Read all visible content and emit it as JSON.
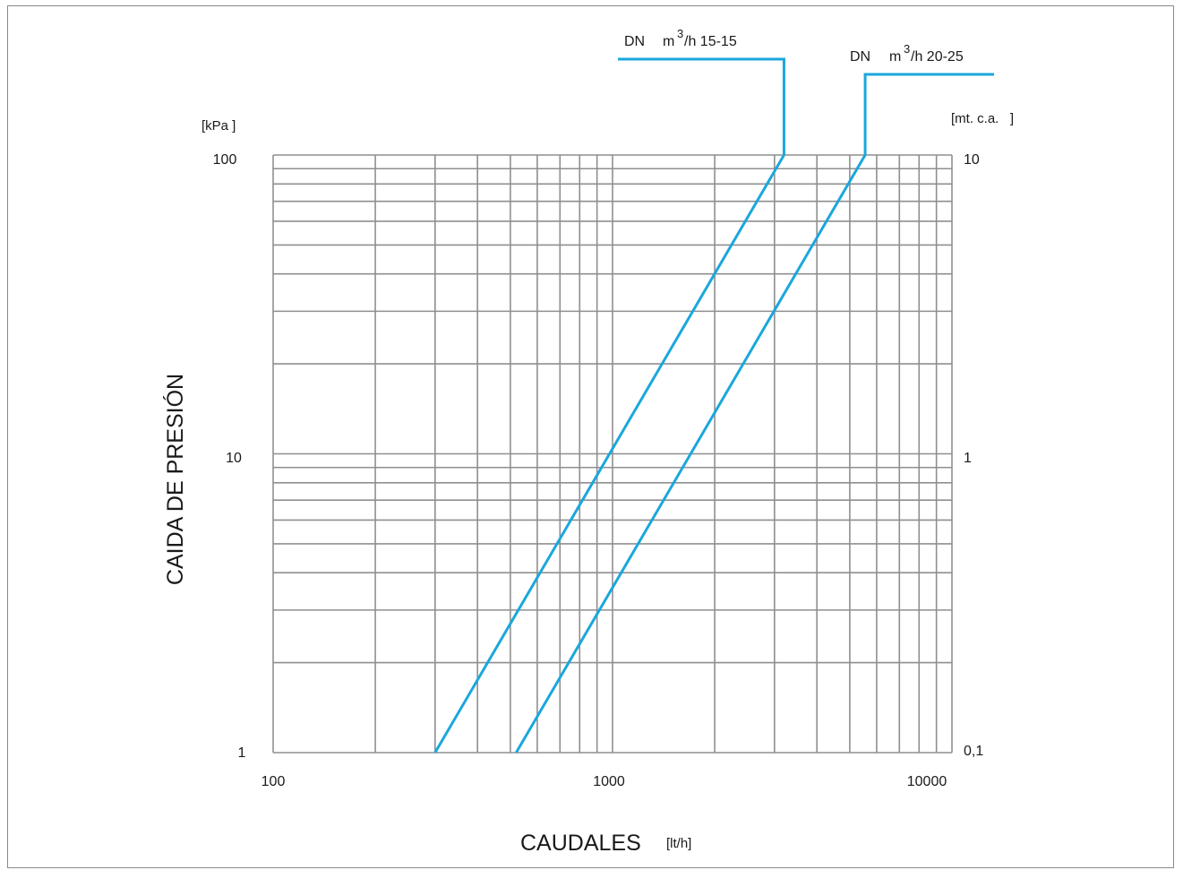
{
  "chart_data": {
    "type": "line",
    "x_scale": "log",
    "y_scale": "log",
    "xlim": [
      100,
      10000
    ],
    "ylim": [
      1,
      100
    ],
    "grid": true,
    "xlabel": "CAUDALES",
    "xlabel_unit": "[lt/h]",
    "ylabel": "CAIDA DE PRESIÓN",
    "ylabel_unit": "[kPa ]",
    "y2label_unit": "[mt. c.a.   ]",
    "x_tick_labels": [
      "100",
      "1000",
      "10000"
    ],
    "y_tick_labels": [
      "1",
      "10",
      "100"
    ],
    "y2_tick_labels": [
      "0,1",
      "1",
      "10"
    ],
    "series": [
      {
        "name": "DN m³/h 15-15",
        "label_prefix": "DN",
        "label_unit": "m",
        "label_sup": "3",
        "label_rest": "/h 15-15",
        "color": "#1aa7dc",
        "x": [
          300,
          3200
        ],
        "y": [
          1,
          100
        ]
      },
      {
        "name": "DN m³/h 20-25",
        "label_prefix": "DN",
        "label_unit": "m",
        "label_sup": "3",
        "label_rest": "/h 20-25",
        "color": "#1aa7dc",
        "x": [
          520,
          5550
        ],
        "y": [
          1,
          100
        ]
      }
    ]
  }
}
